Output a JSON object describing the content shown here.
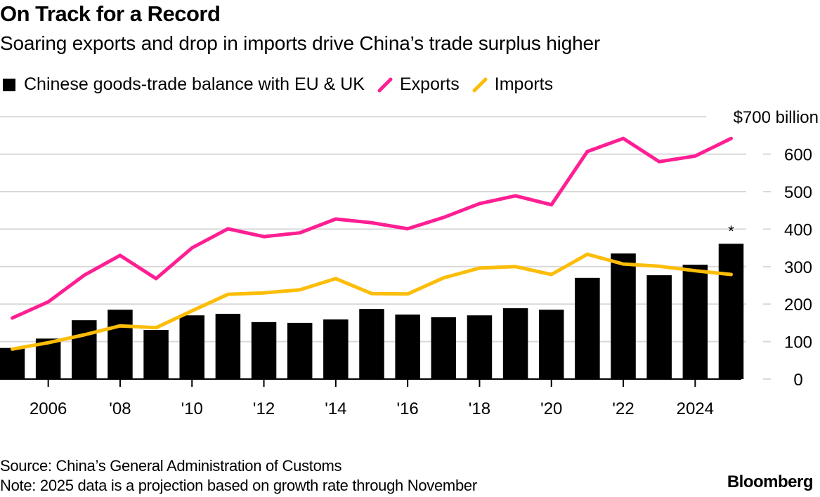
{
  "header": {
    "title": "On Track for a Record",
    "subtitle": "Soaring exports and drop in imports drive China’s trade surplus higher"
  },
  "legend": [
    {
      "label": "Chinese goods-trade balance with EU & UK",
      "type": "bar",
      "color": "#000000"
    },
    {
      "label": "Exports",
      "type": "line",
      "color": "#ff1f93"
    },
    {
      "label": "Imports",
      "type": "line",
      "color": "#fcbd09"
    }
  ],
  "footer": {
    "source": "Source: China’s General Administration of Customs",
    "note": "Note: 2025 data is a projection based on growth rate through November",
    "brand": "Bloomberg"
  },
  "chart_data": {
    "type": "bar",
    "title": "On Track for a Record",
    "subtitle": "Soaring exports and drop in imports drive China’s trade surplus higher",
    "xlabel": "",
    "ylabel": "",
    "y_unit_label": "$700 billion",
    "ylim": [
      0,
      700
    ],
    "y_ticks": [
      0,
      100,
      200,
      300,
      400,
      500,
      600,
      700
    ],
    "y_tick_labels": [
      "0",
      "100",
      "200",
      "300",
      "400",
      "500",
      "600",
      "$700 billion"
    ],
    "grid": true,
    "legend_position": "top-left",
    "x": [
      2005,
      2006,
      2007,
      2008,
      2009,
      2010,
      2011,
      2012,
      2013,
      2014,
      2015,
      2016,
      2017,
      2018,
      2019,
      2020,
      2021,
      2022,
      2023,
      2024,
      2025
    ],
    "x_ticks": [
      2006,
      2008,
      2010,
      2012,
      2014,
      2016,
      2018,
      2020,
      2022,
      2024
    ],
    "x_tick_labels": [
      "2006",
      "'08",
      "'10",
      "'12",
      "'14",
      "'16",
      "'18",
      "'20",
      "'22",
      "2024"
    ],
    "series": [
      {
        "name": "Chinese goods-trade balance with EU & UK",
        "type": "bar",
        "color": "#000000",
        "values": [
          83,
          108,
          157,
          185,
          131,
          170,
          174,
          152,
          150,
          159,
          187,
          172,
          165,
          170,
          189,
          185,
          270,
          335,
          277,
          305,
          361
        ]
      },
      {
        "name": "Exports",
        "type": "line",
        "color": "#ff1f93",
        "values": [
          163,
          206,
          277,
          330,
          268,
          350,
          401,
          380,
          390,
          427,
          417,
          401,
          431,
          468,
          489,
          465,
          607,
          642,
          580,
          595,
          642
        ]
      },
      {
        "name": "Imports",
        "type": "line",
        "color": "#fcbd09",
        "values": [
          80,
          97,
          118,
          142,
          137,
          182,
          226,
          230,
          238,
          268,
          228,
          227,
          270,
          296,
          300,
          279,
          333,
          307,
          301,
          289,
          279
        ]
      }
    ],
    "annotations": [
      {
        "x": 2025,
        "series": "Chinese goods-trade balance with EU & UK",
        "text": "*"
      }
    ]
  }
}
